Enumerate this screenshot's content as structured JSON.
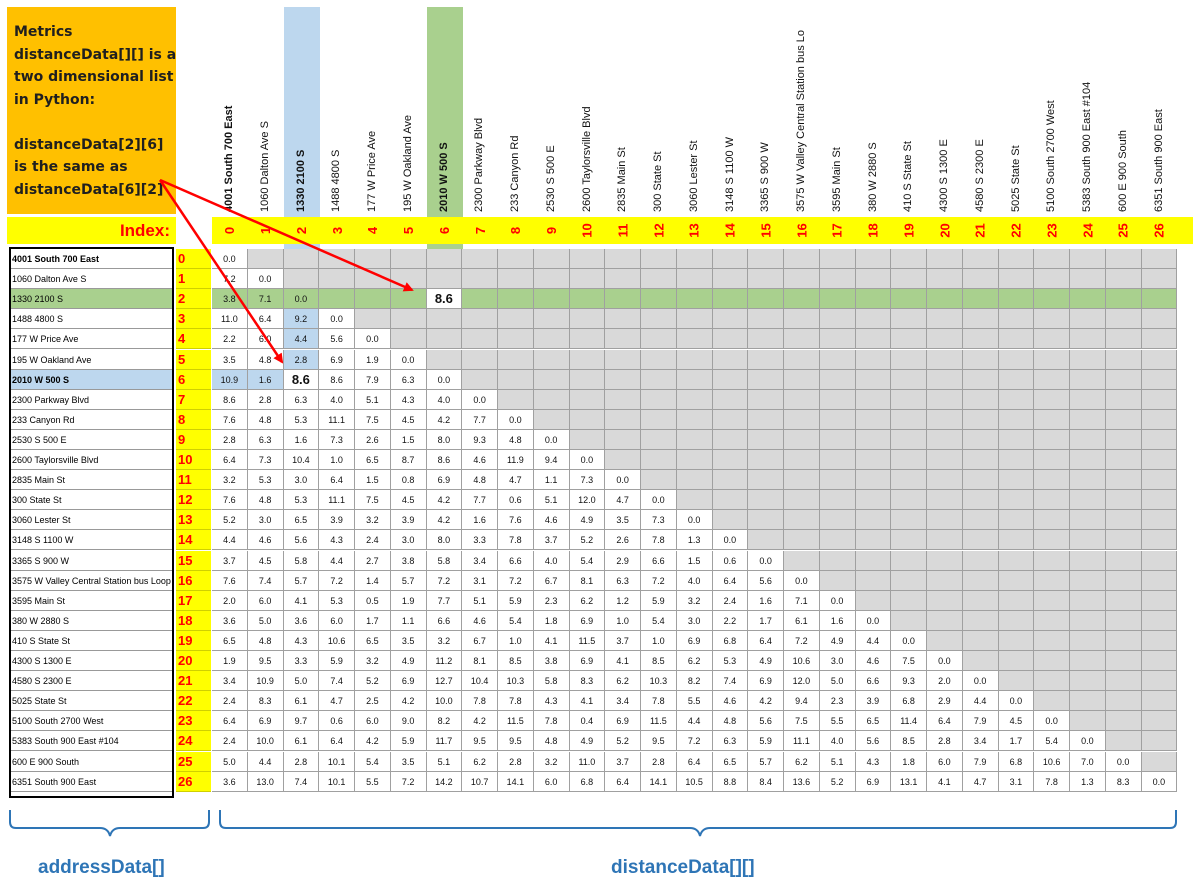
{
  "note_lines": [
    "Metrics",
    "distanceData[][] is a",
    "two dimensional list",
    "in Python:",
    "",
    "distanceData[2][6]",
    "is the same as",
    "distanceData[6][2]"
  ],
  "index_label": "Index:",
  "addresses": [
    "4001 South 700 East",
    "1060 Dalton Ave S",
    "1330 2100 S",
    "1488 4800 S",
    "177 W Price Ave",
    "195 W Oakland Ave",
    "2010 W 500 S",
    "2300 Parkway Blvd",
    "233 Canyon Rd",
    "2530 S 500 E",
    "2600 Taylorsville Blvd",
    "2835 Main St",
    "300 State St",
    "3060 Lester St",
    "3148 S 1100 W",
    "3365 S 900 W",
    "3575 W Valley Central Station bus Loop",
    "3595 Main St",
    "380 W 2880 S",
    "410 S State St",
    "4300 S 1300 E",
    "4580 S 2300 E",
    "5025 State St",
    "5100 South 2700 West",
    "5383 South 900 East #104",
    "600 E 900 South",
    "6351 South 900 East"
  ],
  "column_headers": [
    "4001 South 700 East",
    "1060 Dalton Ave S",
    "1330 2100 S",
    "1488 4800 S",
    "177 W Price Ave",
    "195 W Oakland Ave",
    "2010 W 500 S",
    "2300 Parkway Blvd",
    "233 Canyon Rd",
    "2530 S 500 E",
    "2600 Taylorsville Blvd",
    "2835 Main St",
    "300 State St",
    "3060 Lester St",
    "3148 S 1100 W",
    "3365 S 900 W",
    "3575 W Valley Central Station bus Lo",
    "3595 Main St",
    "380 W 2880 S",
    "410 S State St",
    "4300 S 1300 E",
    "4580 S 2300 E",
    "5025 State St",
    "5100 South 2700 West",
    "5383 South 900 East #104",
    "600 E 900 South",
    "6351 South 900 East"
  ],
  "highlight": {
    "blue": "#bdd7ee",
    "green": "#a9d08e",
    "yellow": "#ffff00",
    "orange": "#ffc000",
    "grey": "#d9d9d9",
    "arrow": "#ff0000",
    "brace": "#2e75b6"
  },
  "callout_value": "8.6",
  "distances": [
    [
      "0.0"
    ],
    [
      "7.2",
      "0.0"
    ],
    [
      "3.8",
      "7.1",
      "0.0"
    ],
    [
      "11.0",
      "6.4",
      "9.2",
      "0.0"
    ],
    [
      "2.2",
      "6.0",
      "4.4",
      "5.6",
      "0.0"
    ],
    [
      "3.5",
      "4.8",
      "2.8",
      "6.9",
      "1.9",
      "0.0"
    ],
    [
      "10.9",
      "1.6",
      "8.6",
      "8.6",
      "7.9",
      "6.3",
      "0.0"
    ],
    [
      "8.6",
      "2.8",
      "6.3",
      "4.0",
      "5.1",
      "4.3",
      "4.0",
      "0.0"
    ],
    [
      "7.6",
      "4.8",
      "5.3",
      "11.1",
      "7.5",
      "4.5",
      "4.2",
      "7.7",
      "0.0"
    ],
    [
      "2.8",
      "6.3",
      "1.6",
      "7.3",
      "2.6",
      "1.5",
      "8.0",
      "9.3",
      "4.8",
      "0.0"
    ],
    [
      "6.4",
      "7.3",
      "10.4",
      "1.0",
      "6.5",
      "8.7",
      "8.6",
      "4.6",
      "11.9",
      "9.4",
      "0.0"
    ],
    [
      "3.2",
      "5.3",
      "3.0",
      "6.4",
      "1.5",
      "0.8",
      "6.9",
      "4.8",
      "4.7",
      "1.1",
      "7.3",
      "0.0"
    ],
    [
      "7.6",
      "4.8",
      "5.3",
      "11.1",
      "7.5",
      "4.5",
      "4.2",
      "7.7",
      "0.6",
      "5.1",
      "12.0",
      "4.7",
      "0.0"
    ],
    [
      "5.2",
      "3.0",
      "6.5",
      "3.9",
      "3.2",
      "3.9",
      "4.2",
      "1.6",
      "7.6",
      "4.6",
      "4.9",
      "3.5",
      "7.3",
      "0.0"
    ],
    [
      "4.4",
      "4.6",
      "5.6",
      "4.3",
      "2.4",
      "3.0",
      "8.0",
      "3.3",
      "7.8",
      "3.7",
      "5.2",
      "2.6",
      "7.8",
      "1.3",
      "0.0"
    ],
    [
      "3.7",
      "4.5",
      "5.8",
      "4.4",
      "2.7",
      "3.8",
      "5.8",
      "3.4",
      "6.6",
      "4.0",
      "5.4",
      "2.9",
      "6.6",
      "1.5",
      "0.6",
      "0.0"
    ],
    [
      "7.6",
      "7.4",
      "5.7",
      "7.2",
      "1.4",
      "5.7",
      "7.2",
      "3.1",
      "7.2",
      "6.7",
      "8.1",
      "6.3",
      "7.2",
      "4.0",
      "6.4",
      "5.6",
      "0.0"
    ],
    [
      "2.0",
      "6.0",
      "4.1",
      "5.3",
      "0.5",
      "1.9",
      "7.7",
      "5.1",
      "5.9",
      "2.3",
      "6.2",
      "1.2",
      "5.9",
      "3.2",
      "2.4",
      "1.6",
      "7.1",
      "0.0"
    ],
    [
      "3.6",
      "5.0",
      "3.6",
      "6.0",
      "1.7",
      "1.1",
      "6.6",
      "4.6",
      "5.4",
      "1.8",
      "6.9",
      "1.0",
      "5.4",
      "3.0",
      "2.2",
      "1.7",
      "6.1",
      "1.6",
      "0.0"
    ],
    [
      "6.5",
      "4.8",
      "4.3",
      "10.6",
      "6.5",
      "3.5",
      "3.2",
      "6.7",
      "1.0",
      "4.1",
      "11.5",
      "3.7",
      "1.0",
      "6.9",
      "6.8",
      "6.4",
      "7.2",
      "4.9",
      "4.4",
      "0.0"
    ],
    [
      "1.9",
      "9.5",
      "3.3",
      "5.9",
      "3.2",
      "4.9",
      "11.2",
      "8.1",
      "8.5",
      "3.8",
      "6.9",
      "4.1",
      "8.5",
      "6.2",
      "5.3",
      "4.9",
      "10.6",
      "3.0",
      "4.6",
      "7.5",
      "0.0"
    ],
    [
      "3.4",
      "10.9",
      "5.0",
      "7.4",
      "5.2",
      "6.9",
      "12.7",
      "10.4",
      "10.3",
      "5.8",
      "8.3",
      "6.2",
      "10.3",
      "8.2",
      "7.4",
      "6.9",
      "12.0",
      "5.0",
      "6.6",
      "9.3",
      "2.0",
      "0.0"
    ],
    [
      "2.4",
      "8.3",
      "6.1",
      "4.7",
      "2.5",
      "4.2",
      "10.0",
      "7.8",
      "7.8",
      "4.3",
      "4.1",
      "3.4",
      "7.8",
      "5.5",
      "4.6",
      "4.2",
      "9.4",
      "2.3",
      "3.9",
      "6.8",
      "2.9",
      "4.4",
      "0.0"
    ],
    [
      "6.4",
      "6.9",
      "9.7",
      "0.6",
      "6.0",
      "9.0",
      "8.2",
      "4.2",
      "11.5",
      "7.8",
      "0.4",
      "6.9",
      "11.5",
      "4.4",
      "4.8",
      "5.6",
      "7.5",
      "5.5",
      "6.5",
      "11.4",
      "6.4",
      "7.9",
      "4.5",
      "0.0"
    ],
    [
      "2.4",
      "10.0",
      "6.1",
      "6.4",
      "4.2",
      "5.9",
      "11.7",
      "9.5",
      "9.5",
      "4.8",
      "4.9",
      "5.2",
      "9.5",
      "7.2",
      "6.3",
      "5.9",
      "11.1",
      "4.0",
      "5.6",
      "8.5",
      "2.8",
      "3.4",
      "1.7",
      "5.4",
      "0.0"
    ],
    [
      "5.0",
      "4.4",
      "2.8",
      "10.1",
      "5.4",
      "3.5",
      "5.1",
      "6.2",
      "2.8",
      "3.2",
      "11.0",
      "3.7",
      "2.8",
      "6.4",
      "6.5",
      "5.7",
      "6.2",
      "5.1",
      "4.3",
      "1.8",
      "6.0",
      "7.9",
      "6.8",
      "10.6",
      "7.0",
      "0.0"
    ],
    [
      "3.6",
      "13.0",
      "7.4",
      "10.1",
      "5.5",
      "7.2",
      "14.2",
      "10.7",
      "14.1",
      "6.0",
      "6.8",
      "6.4",
      "14.1",
      "10.5",
      "8.8",
      "8.4",
      "13.6",
      "5.2",
      "6.9",
      "13.1",
      "4.1",
      "4.7",
      "3.1",
      "7.8",
      "1.3",
      "8.3",
      "0.0"
    ]
  ],
  "brace_labels": {
    "address": "addressData[]",
    "distance": "distanceData[][]"
  }
}
